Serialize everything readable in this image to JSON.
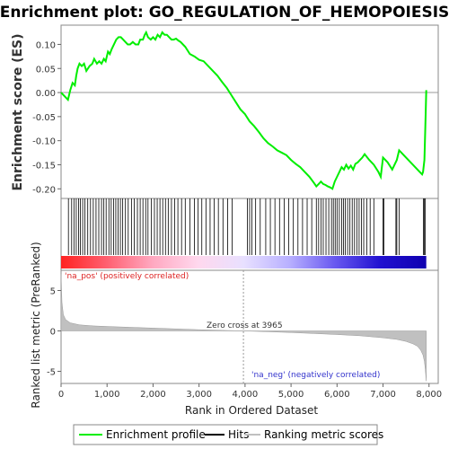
{
  "chart_data": {
    "type": "line",
    "title": "Enrichment plot: GO_REGULATION_OF_HEMOPOIESIS",
    "es_panel": {
      "ylabel": "Enrichment score (ES)",
      "ylim": [
        -0.22,
        0.14
      ],
      "yticks": [
        0.1,
        0.05,
        0.0,
        -0.05,
        -0.1,
        -0.15,
        -0.2
      ],
      "ytick_labels": [
        "0.10",
        "0.05",
        "0.00",
        "-0.05",
        "-0.10",
        "-0.15",
        "-0.20"
      ],
      "series": [
        {
          "name": "Enrichment profile",
          "color": "#00ee00",
          "x": [
            0,
            150,
            200,
            250,
            300,
            330,
            360,
            400,
            450,
            500,
            550,
            620,
            680,
            720,
            780,
            830,
            880,
            930,
            970,
            1020,
            1060,
            1100,
            1150,
            1200,
            1250,
            1300,
            1350,
            1400,
            1450,
            1500,
            1560,
            1620,
            1680,
            1720,
            1780,
            1820,
            1850,
            1890,
            1950,
            2000,
            2050,
            2100,
            2150,
            2200,
            2250,
            2300,
            2350,
            2400,
            2450,
            2500,
            2550,
            2600,
            2700,
            2800,
            2900,
            3000,
            3100,
            3200,
            3300,
            3400,
            3500,
            3600,
            3700,
            3800,
            3900,
            4000,
            4100,
            4200,
            4300,
            4400,
            4500,
            4600,
            4700,
            4800,
            4900,
            5000,
            5100,
            5200,
            5300,
            5400,
            5500,
            5550,
            5600,
            5650,
            5700,
            5750,
            5800,
            5850,
            5900,
            5950,
            6000,
            6050,
            6100,
            6150,
            6200,
            6250,
            6300,
            6350,
            6400,
            6450,
            6500,
            6550,
            6600,
            6700,
            6800,
            6900,
            6950,
            7000,
            7100,
            7200,
            7300,
            7350,
            7400,
            7500,
            7600,
            7700,
            7800,
            7850,
            7870,
            7900,
            7920,
            7940
          ],
          "values": [
            0.0,
            -0.015,
            0.005,
            0.02,
            0.015,
            0.035,
            0.05,
            0.06,
            0.055,
            0.06,
            0.045,
            0.055,
            0.06,
            0.07,
            0.06,
            0.065,
            0.06,
            0.07,
            0.065,
            0.085,
            0.08,
            0.09,
            0.1,
            0.11,
            0.115,
            0.115,
            0.11,
            0.105,
            0.1,
            0.1,
            0.105,
            0.1,
            0.1,
            0.11,
            0.11,
            0.12,
            0.125,
            0.115,
            0.11,
            0.115,
            0.11,
            0.12,
            0.115,
            0.125,
            0.12,
            0.12,
            0.115,
            0.11,
            0.11,
            0.112,
            0.108,
            0.105,
            0.095,
            0.08,
            0.075,
            0.068,
            0.065,
            0.055,
            0.045,
            0.035,
            0.022,
            0.01,
            -0.005,
            -0.02,
            -0.035,
            -0.045,
            -0.06,
            -0.07,
            -0.082,
            -0.095,
            -0.105,
            -0.112,
            -0.12,
            -0.125,
            -0.13,
            -0.14,
            -0.148,
            -0.155,
            -0.165,
            -0.175,
            -0.188,
            -0.195,
            -0.19,
            -0.185,
            -0.19,
            -0.192,
            -0.195,
            -0.197,
            -0.2,
            -0.185,
            -0.175,
            -0.165,
            -0.155,
            -0.16,
            -0.15,
            -0.158,
            -0.152,
            -0.16,
            -0.148,
            -0.145,
            -0.14,
            -0.135,
            -0.128,
            -0.14,
            -0.15,
            -0.165,
            -0.175,
            -0.135,
            -0.145,
            -0.16,
            -0.14,
            -0.12,
            -0.125,
            -0.135,
            -0.145,
            -0.155,
            -0.165,
            -0.17,
            -0.165,
            -0.14,
            -0.07,
            0.005
          ]
        }
      ]
    },
    "hits_panel": {
      "hit_positions": [
        160,
        230,
        280,
        330,
        380,
        420,
        470,
        520,
        580,
        640,
        700,
        760,
        820,
        880,
        930,
        980,
        1040,
        1090,
        1140,
        1190,
        1240,
        1290,
        1340,
        1400,
        1460,
        1530,
        1590,
        1660,
        1720,
        1780,
        1840,
        1890,
        1960,
        2030,
        2090,
        2150,
        2210,
        2270,
        2330,
        2400,
        2470,
        2540,
        2620,
        2700,
        2800,
        2900,
        2980,
        3060,
        3150,
        3240,
        3330,
        3420,
        3520,
        3620,
        3720,
        4050,
        4100,
        4150,
        4230,
        4330,
        4450,
        4550,
        4650,
        4750,
        4850,
        4950,
        5050,
        5150,
        5250,
        5350,
        5450,
        5550,
        5600,
        5650,
        5700,
        5760,
        5820,
        5880,
        5920,
        5960,
        6000,
        6050,
        6100,
        6140,
        6180,
        6230,
        6280,
        6330,
        6380,
        6430,
        6480,
        6530,
        6580,
        6650,
        6720,
        6800,
        7000,
        7020,
        7280,
        7300,
        7350,
        7880,
        7900,
        7920
      ],
      "gradient_colors": [
        "#ff2222",
        "#ff6070",
        "#ffa8c0",
        "#ffd8ee",
        "#e8e0ff",
        "#b8b0ff",
        "#6858f0",
        "#2010d0",
        "#1000b0"
      ]
    },
    "metric_panel": {
      "ylabel": "Ranked list metric (PreRanked)",
      "ylim": [
        -6.5,
        7.5
      ],
      "yticks": [
        5,
        0,
        -5
      ],
      "ytick_labels": [
        "5",
        "0",
        "-5"
      ],
      "zero_cross": 3965,
      "zero_cross_label": "Zero cross at 3965",
      "pos_label": "'na_pos' (positively correlated)",
      "neg_label": "'na_neg' (negatively correlated)",
      "fill_color": "#c0c0c0",
      "x": [
        0,
        20,
        50,
        100,
        200,
        400,
        700,
        1000,
        1500,
        2000,
        2500,
        3000,
        3500,
        3965,
        4500,
        5000,
        5500,
        6000,
        6500,
        7000,
        7300,
        7500,
        7650,
        7750,
        7820,
        7870,
        7900,
        7920,
        7940
      ],
      "values": [
        7.0,
        3.5,
        2.0,
        1.4,
        1.0,
        0.75,
        0.62,
        0.55,
        0.45,
        0.35,
        0.25,
        0.15,
        0.07,
        0.0,
        -0.1,
        -0.2,
        -0.32,
        -0.45,
        -0.6,
        -0.85,
        -1.05,
        -1.3,
        -1.6,
        -1.9,
        -2.4,
        -3.0,
        -3.8,
        -4.8,
        -6.2
      ]
    },
    "xaxis": {
      "label": "Rank in Ordered Dataset",
      "xlim": [
        0,
        8200
      ],
      "ticks": [
        0,
        1000,
        2000,
        3000,
        4000,
        5000,
        6000,
        7000,
        8000
      ],
      "tick_labels": [
        "0",
        "1,000",
        "2,000",
        "3,000",
        "4,000",
        "5,000",
        "6,000",
        "7,000",
        "8,000"
      ]
    },
    "legend": [
      {
        "label": "Enrichment profile",
        "color": "#00ee00"
      },
      {
        "label": "Hits",
        "color": "#000000"
      },
      {
        "label": "Ranking metric scores",
        "color": "#c0c0c0"
      }
    ]
  }
}
